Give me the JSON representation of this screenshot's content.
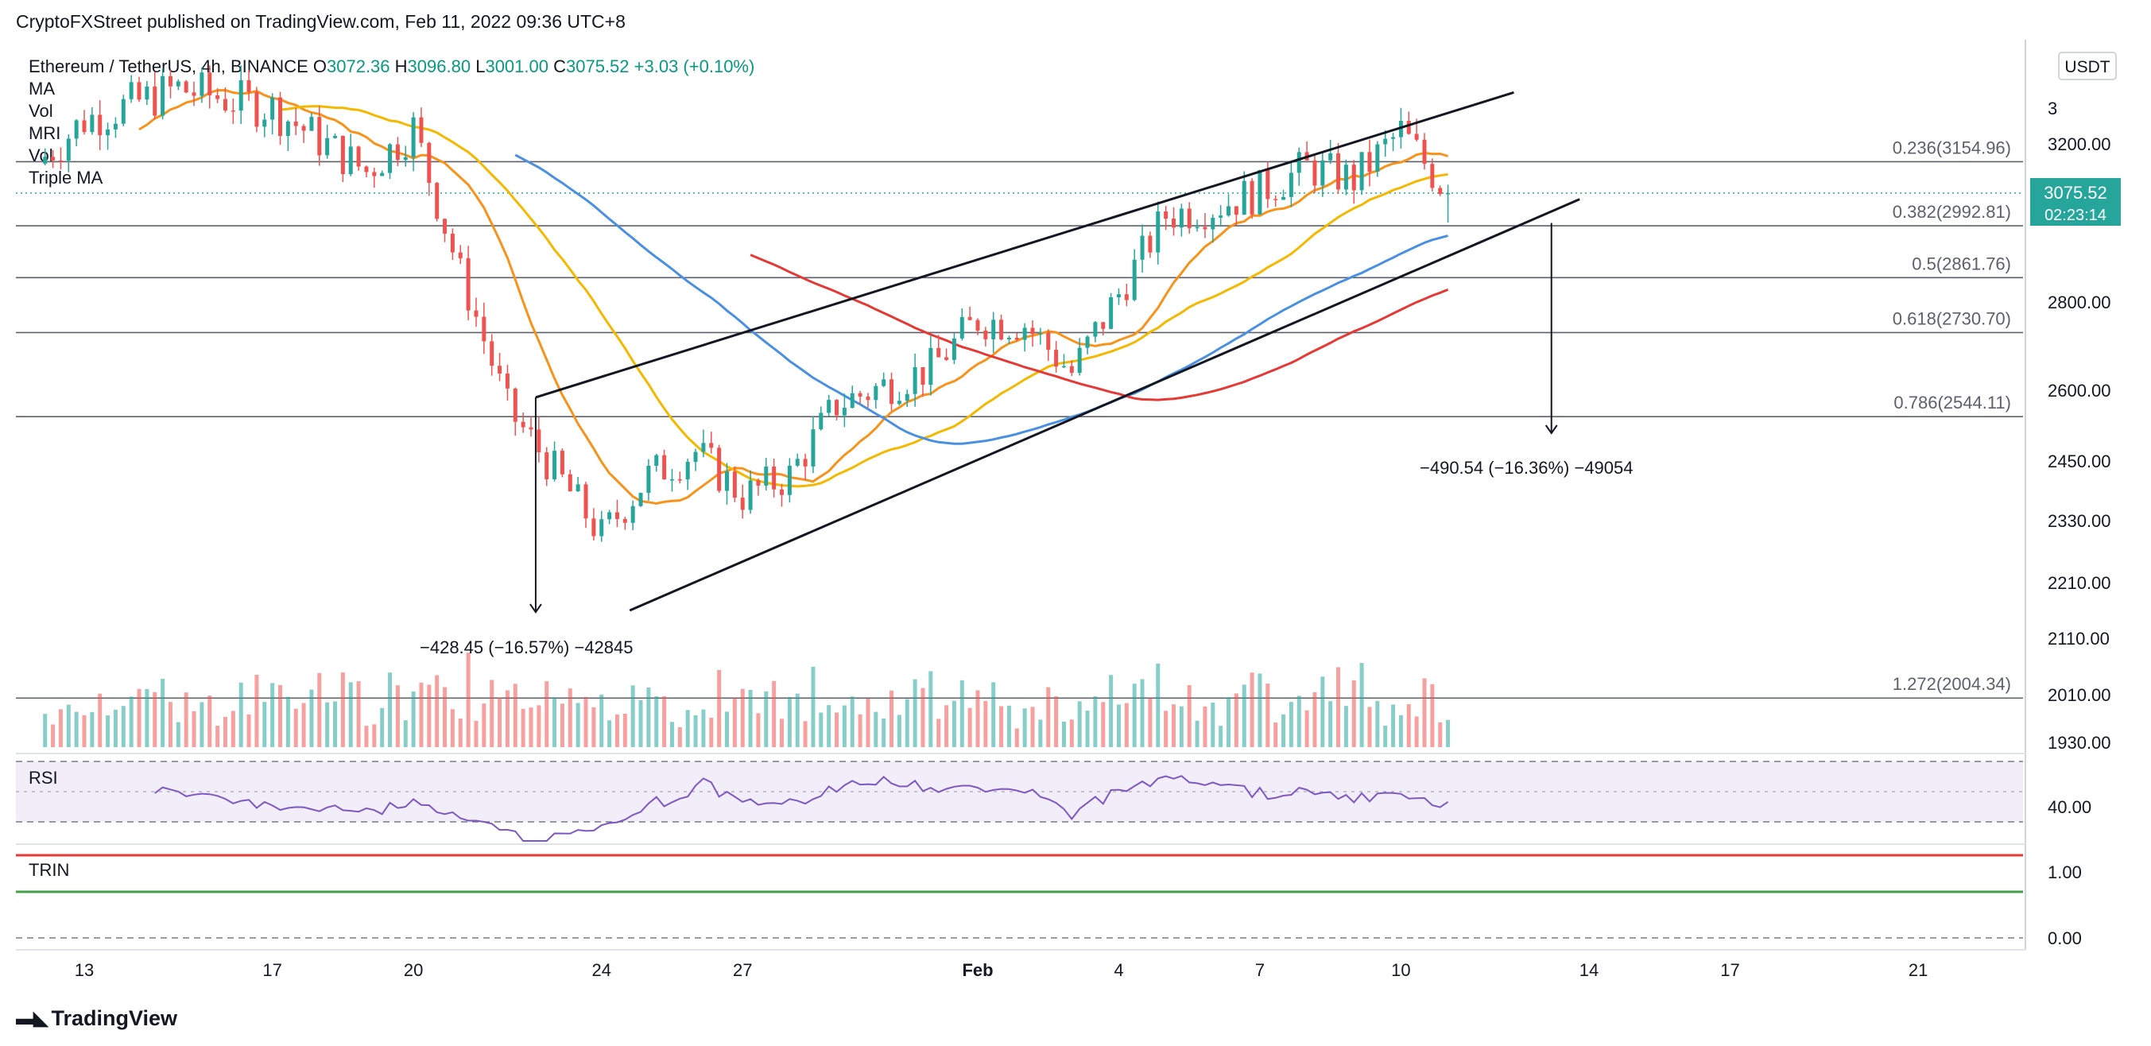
{
  "header": {
    "publisher_line": "CryptoFXStreet published on TradingView.com, Feb 11, 2022 09:36 UTC+8"
  },
  "legend": {
    "symbol": "Ethereum / TetherUS, 4h, BINANCE",
    "o_label": "O",
    "o": "3072.36",
    "h_label": "H",
    "h": "3096.80",
    "l_label": "L",
    "l": "3001.00",
    "c_label": "C",
    "c": "3075.52",
    "change": "+3.03 (+0.10%)",
    "indicators": [
      "MA",
      "Vol",
      "MRI",
      "Vol",
      "Triple MA"
    ]
  },
  "currency_badge": "USDT",
  "last_price": {
    "value": "3075.52",
    "countdown": "02:23:14"
  },
  "rsi_label": "RSI",
  "trin_label": "TRIN",
  "footer_logo": "TradingView",
  "colors": {
    "up": "#26a69a",
    "down": "#ef5350",
    "ma_orange": "#f7931a",
    "ma_gold": "#f5b800",
    "ma_red": "#e53935",
    "ma_blue": "#4a90e2",
    "rsi": "#7e57c2",
    "trin_red": "#e53935",
    "trin_green": "#43a047"
  },
  "chart_data": [
    {
      "type": "candlestick",
      "title": "Ethereum / TetherUS, 4h, BINANCE",
      "x_tick_labels": [
        "13",
        "17",
        "20",
        "24",
        "27",
        "Feb",
        "4",
        "7",
        "10",
        "14",
        "17",
        "21"
      ],
      "y_tick_labels": [
        "3200.00",
        "2800.00",
        "2600.00",
        "2450.00",
        "2330.00",
        "2210.00",
        "2110.00",
        "2010.00",
        "1930.00"
      ],
      "y_axis_partial_label": "3",
      "fibonacci_levels": [
        {
          "label": "0.236(3154.96)",
          "value": 3154.96
        },
        {
          "label": "0.382(2992.81)",
          "value": 2992.81
        },
        {
          "label": "0.5(2861.76)",
          "value": 2861.76
        },
        {
          "label": "0.618(2730.70)",
          "value": 2730.7
        },
        {
          "label": "0.786(2544.11)",
          "value": 2544.11
        },
        {
          "label": "1.272(2004.34)",
          "value": 2004.34
        }
      ],
      "annotations": [
        {
          "text": "−428.45 (−16.57%) −42845",
          "from": 2585,
          "to": 2157
        },
        {
          "text": "−490.54 (−16.36%) −49054",
          "from": 3000,
          "to": 2509
        }
      ],
      "pattern": "rising wedge",
      "approx_close_path": [
        {
          "t": "Jan 12",
          "close": 3150
        },
        {
          "t": "Jan 13",
          "close": 3260
        },
        {
          "t": "Jan 15",
          "close": 3340
        },
        {
          "t": "Jan 17",
          "close": 3290
        },
        {
          "t": "Jan 19",
          "close": 3130
        },
        {
          "t": "Jan 20",
          "close": 3240
        },
        {
          "t": "Jan 21",
          "close": 2870
        },
        {
          "t": "Jan 22",
          "close": 2560
        },
        {
          "t": "Jan 23",
          "close": 2430
        },
        {
          "t": "Jan 24",
          "close": 2300
        },
        {
          "t": "Jan 25",
          "close": 2420
        },
        {
          "t": "Jan 26",
          "close": 2470
        },
        {
          "t": "Jan 27",
          "close": 2380
        },
        {
          "t": "Jan 28",
          "close": 2420
        },
        {
          "t": "Jan 29",
          "close": 2570
        },
        {
          "t": "Jan 31",
          "close": 2650
        },
        {
          "t": "Feb 1",
          "close": 2760
        },
        {
          "t": "Feb 2",
          "close": 2750
        },
        {
          "t": "Feb 3",
          "close": 2640
        },
        {
          "t": "Feb 4",
          "close": 2820
        },
        {
          "t": "Feb 5",
          "close": 3020
        },
        {
          "t": "Feb 6",
          "close": 3040
        },
        {
          "t": "Feb 7",
          "close": 3080
        },
        {
          "t": "Feb 8",
          "close": 3140
        },
        {
          "t": "Feb 9",
          "close": 3110
        },
        {
          "t": "Feb 10",
          "close": 3230
        },
        {
          "t": "Feb 11",
          "close": 3075.52
        }
      ],
      "moving_averages": [
        {
          "color": "orange"
        },
        {
          "color": "gold"
        },
        {
          "color": "red"
        },
        {
          "color": "blue"
        }
      ]
    },
    {
      "type": "line",
      "title": "RSI",
      "y_tick_labels": [
        "40.00"
      ]
    },
    {
      "type": "line",
      "title": "TRIN",
      "y_tick_labels": [
        "1.00",
        "0.00"
      ]
    }
  ]
}
